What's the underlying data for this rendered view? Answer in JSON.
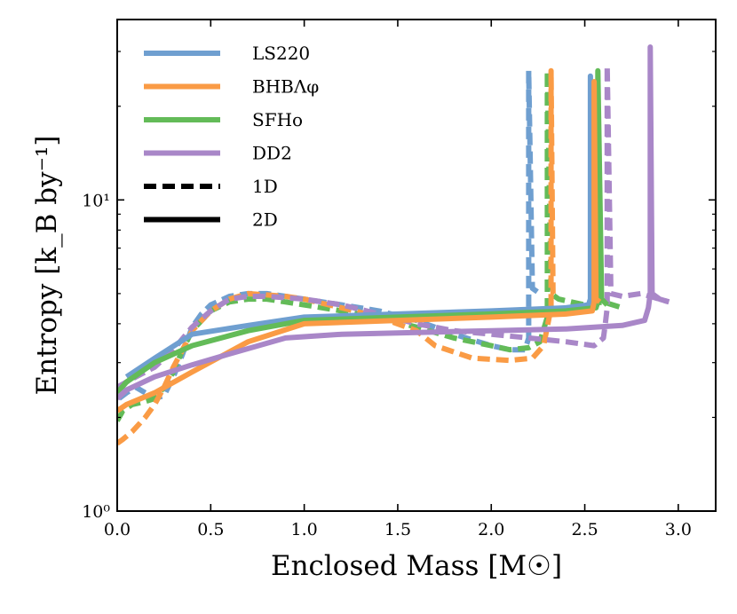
{
  "chart_data": {
    "type": "line",
    "title": "",
    "xlabel": "Enclosed Mass [M☉]",
    "ylabel": "Entropy [k_B by⁻¹]",
    "xlim": [
      0.0,
      3.2
    ],
    "ylim": [
      1.0,
      38.0
    ],
    "yscale": "log",
    "x_ticks": [
      0.0,
      0.5,
      1.0,
      1.5,
      2.0,
      2.5,
      3.0
    ],
    "x_tick_labels": [
      "0.0",
      "0.5",
      "1.0",
      "1.5",
      "2.0",
      "2.5",
      "3.0"
    ],
    "y_major_ticks": [
      1,
      10
    ],
    "y_tick_labels": [
      "10⁰",
      "10¹"
    ],
    "grid": false,
    "legend_position": "top-left",
    "legend": [
      {
        "label": "LS220",
        "color": "#6f9fd0",
        "style": "solid"
      },
      {
        "label": "BHBΛφ",
        "color": "#fa9b45",
        "style": "solid"
      },
      {
        "label": "SFHo",
        "color": "#63bb58",
        "style": "solid"
      },
      {
        "label": "DD2",
        "color": "#a987c8",
        "style": "solid"
      },
      {
        "label": "1D",
        "color": "#000000",
        "style": "dashed"
      },
      {
        "label": "2D",
        "color": "#000000",
        "style": "solid"
      }
    ],
    "series": [
      {
        "name": "LS220 1D",
        "model": "LS220",
        "dim": "1D",
        "color": "#6f9fd0",
        "x": [
          0.01,
          0.05,
          0.1,
          0.15,
          0.2,
          0.25,
          0.3,
          0.35,
          0.4,
          0.45,
          0.5,
          0.6,
          0.7,
          0.8,
          0.9,
          1.0,
          1.2,
          1.4,
          1.6,
          1.8,
          2.0,
          2.1,
          2.18,
          2.2,
          2.2,
          2.2,
          2.2,
          2.22,
          2.26
        ],
        "y": [
          2.3,
          2.4,
          2.5,
          2.4,
          2.3,
          2.35,
          2.7,
          3.2,
          3.9,
          4.3,
          4.6,
          4.9,
          5.0,
          5.0,
          4.9,
          4.8,
          4.6,
          4.4,
          4.1,
          3.7,
          3.4,
          3.3,
          3.3,
          3.6,
          4.5,
          5.5,
          26.0,
          5.2,
          5.0
        ]
      },
      {
        "name": "BHBΛφ 1D",
        "model": "BHBΛφ",
        "dim": "1D",
        "color": "#fa9b45",
        "x": [
          0.0,
          0.03,
          0.08,
          0.15,
          0.2,
          0.25,
          0.3,
          0.35,
          0.4,
          0.5,
          0.6,
          0.7,
          0.8,
          0.9,
          1.0,
          1.2,
          1.4,
          1.6,
          1.7,
          1.9,
          2.1,
          2.22,
          2.28,
          2.32,
          2.32,
          2.32,
          2.33,
          2.36
        ],
        "y": [
          1.65,
          1.7,
          1.8,
          2.0,
          2.2,
          2.5,
          2.9,
          3.3,
          3.8,
          4.4,
          4.8,
          5.0,
          4.95,
          4.9,
          4.8,
          4.5,
          4.2,
          3.8,
          3.4,
          3.1,
          3.05,
          3.1,
          3.4,
          4.5,
          5.5,
          26.0,
          5.0,
          4.9
        ]
      },
      {
        "name": "SFHo 1D",
        "model": "SFHo",
        "dim": "1D",
        "color": "#63bb58",
        "x": [
          0.0,
          0.03,
          0.08,
          0.15,
          0.2,
          0.25,
          0.3,
          0.35,
          0.4,
          0.5,
          0.6,
          0.7,
          0.8,
          0.9,
          1.0,
          1.2,
          1.4,
          1.6,
          1.8,
          2.0,
          2.1,
          2.2,
          2.26,
          2.3,
          2.3,
          2.3,
          2.32,
          2.36,
          2.5,
          2.6,
          2.7
        ],
        "y": [
          1.95,
          2.1,
          2.2,
          2.25,
          2.3,
          2.5,
          2.8,
          3.3,
          3.8,
          4.4,
          4.7,
          4.8,
          4.8,
          4.7,
          4.6,
          4.4,
          4.2,
          3.9,
          3.6,
          3.4,
          3.3,
          3.35,
          3.5,
          4.2,
          5.5,
          26.0,
          5.0,
          4.8,
          4.6,
          4.7,
          4.5
        ]
      },
      {
        "name": "DD2 1D",
        "model": "DD2",
        "dim": "1D",
        "color": "#a987c8",
        "x": [
          0.0,
          0.05,
          0.1,
          0.2,
          0.3,
          0.4,
          0.5,
          0.6,
          0.7,
          0.8,
          0.9,
          1.0,
          1.2,
          1.4,
          1.6,
          1.8,
          2.0,
          2.2,
          2.4,
          2.55,
          2.6,
          2.61,
          2.62,
          2.62,
          2.62,
          2.64,
          2.7,
          2.8,
          2.9,
          2.95
        ],
        "y": [
          2.5,
          2.6,
          2.7,
          2.9,
          3.3,
          3.9,
          4.4,
          4.8,
          4.9,
          4.9,
          4.85,
          4.8,
          4.6,
          4.3,
          4.0,
          3.8,
          3.7,
          3.6,
          3.5,
          3.4,
          3.6,
          4.0,
          4.5,
          5.0,
          27.0,
          5.0,
          4.9,
          5.0,
          4.8,
          4.7
        ]
      },
      {
        "name": "LS220 2D",
        "model": "LS220",
        "dim": "2D",
        "color": "#6f9fd0",
        "x": [
          0.05,
          0.2,
          0.4,
          0.7,
          1.0,
          1.5,
          2.0,
          2.4,
          2.52,
          2.53,
          2.53,
          2.54,
          2.56
        ],
        "y": [
          2.7,
          3.1,
          3.7,
          3.95,
          4.2,
          4.3,
          4.4,
          4.5,
          4.6,
          4.8,
          25.0,
          5.0,
          4.9
        ]
      },
      {
        "name": "BHBΛφ 2D",
        "model": "BHBΛφ",
        "dim": "2D",
        "color": "#fa9b45",
        "x": [
          0.0,
          0.05,
          0.2,
          0.4,
          0.7,
          1.0,
          1.5,
          2.0,
          2.4,
          2.54,
          2.55,
          2.55,
          2.56,
          2.58
        ],
        "y": [
          2.1,
          2.2,
          2.4,
          2.8,
          3.5,
          4.0,
          4.1,
          4.2,
          4.3,
          4.4,
          4.7,
          24.0,
          4.8,
          4.7
        ]
      },
      {
        "name": "SFHo 2D",
        "model": "SFHo",
        "dim": "2D",
        "color": "#63bb58",
        "x": [
          0.0,
          0.05,
          0.2,
          0.4,
          0.7,
          1.0,
          1.5,
          2.0,
          2.4,
          2.56,
          2.57,
          2.57,
          2.59,
          2.62
        ],
        "y": [
          2.4,
          2.6,
          3.0,
          3.4,
          3.8,
          4.1,
          4.2,
          4.3,
          4.4,
          4.5,
          4.7,
          26.0,
          4.8,
          4.6
        ]
      },
      {
        "name": "DD2 2D",
        "model": "DD2",
        "dim": "2D",
        "color": "#a987c8",
        "x": [
          0.0,
          0.05,
          0.2,
          0.4,
          0.6,
          0.9,
          1.2,
          1.6,
          2.0,
          2.4,
          2.7,
          2.82,
          2.84,
          2.85,
          2.85,
          2.86,
          2.9,
          2.95
        ],
        "y": [
          2.3,
          2.45,
          2.7,
          2.95,
          3.2,
          3.6,
          3.7,
          3.75,
          3.8,
          3.85,
          3.95,
          4.1,
          4.5,
          5.0,
          31.0,
          5.0,
          4.8,
          4.7
        ]
      }
    ]
  }
}
